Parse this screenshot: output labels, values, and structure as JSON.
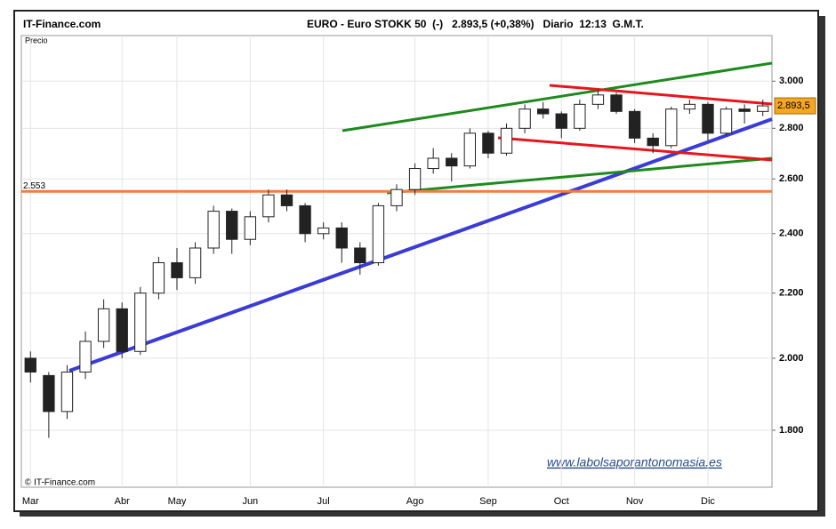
{
  "chart_data": {
    "type": "candlestick",
    "site": "IT-Finance.com",
    "title": "EURO - Euro STOKK 50  (-)   2.893,5 (+0,38%)   Diario  12:13  G.M.T.",
    "y_label": "Precio",
    "copyright": "© IT-Finance.com",
    "watermark": "www.labolsaporantonomasia.es",
    "log_scale": true,
    "grid": true,
    "ylim": [
      1656,
      3207
    ],
    "yticks": [
      {
        "value": 1800,
        "label": "1.800"
      },
      {
        "value": 2000,
        "label": "2.000"
      },
      {
        "value": 2200,
        "label": "2.200"
      },
      {
        "value": 2400,
        "label": "2.400"
      },
      {
        "value": 2600,
        "label": "2.600"
      },
      {
        "value": 2800,
        "label": "2.800"
      },
      {
        "value": 3000,
        "label": "3.000"
      }
    ],
    "reference_line": {
      "value": 2553,
      "label": "2.553",
      "color": "#f47c3c"
    },
    "last_price": {
      "value": 2893.5,
      "label": "2.893,5"
    },
    "categories": [
      "Mar",
      null,
      null,
      null,
      null,
      "Abr",
      null,
      null,
      "May",
      null,
      null,
      null,
      "Jun",
      null,
      null,
      null,
      "Jul",
      null,
      null,
      null,
      null,
      "Ago",
      null,
      null,
      null,
      "Sep",
      null,
      null,
      null,
      "Oct",
      null,
      null,
      null,
      "Nov",
      null,
      null,
      null,
      "Dic",
      null,
      null,
      null
    ],
    "open": [
      2000,
      1950,
      1850,
      1960,
      2050,
      2150,
      2020,
      2200,
      2300,
      2250,
      2350,
      2480,
      2380,
      2460,
      2540,
      2500,
      2400,
      2420,
      2350,
      2300,
      2500,
      2560,
      2640,
      2680,
      2650,
      2780,
      2700,
      2800,
      2880,
      2860,
      2800,
      2900,
      2940,
      2870,
      2760,
      2730,
      2880,
      2900,
      2780,
      2880,
      2870
    ],
    "high": [
      2020,
      1960,
      1980,
      2080,
      2180,
      2170,
      2220,
      2320,
      2350,
      2370,
      2500,
      2490,
      2480,
      2560,
      2560,
      2510,
      2440,
      2440,
      2370,
      2510,
      2580,
      2660,
      2720,
      2700,
      2800,
      2790,
      2820,
      2900,
      2910,
      2870,
      2920,
      2960,
      2950,
      2880,
      2780,
      2890,
      2920,
      2910,
      2890,
      2900,
      2920
    ],
    "low": [
      1930,
      1780,
      1830,
      1940,
      2030,
      2000,
      2010,
      2180,
      2210,
      2230,
      2330,
      2330,
      2360,
      2440,
      2480,
      2370,
      2380,
      2300,
      2260,
      2290,
      2480,
      2540,
      2620,
      2590,
      2640,
      2680,
      2690,
      2780,
      2840,
      2760,
      2790,
      2880,
      2860,
      2740,
      2700,
      2720,
      2860,
      2750,
      2770,
      2820,
      2850
    ],
    "close": [
      1960,
      1850,
      1960,
      2050,
      2150,
      2020,
      2200,
      2300,
      2250,
      2350,
      2480,
      2380,
      2460,
      2540,
      2500,
      2400,
      2420,
      2350,
      2300,
      2500,
      2560,
      2640,
      2680,
      2650,
      2780,
      2700,
      2800,
      2880,
      2860,
      2800,
      2900,
      2940,
      2870,
      2760,
      2730,
      2880,
      2900,
      2780,
      2880,
      2870,
      2893.5
    ]
  }
}
